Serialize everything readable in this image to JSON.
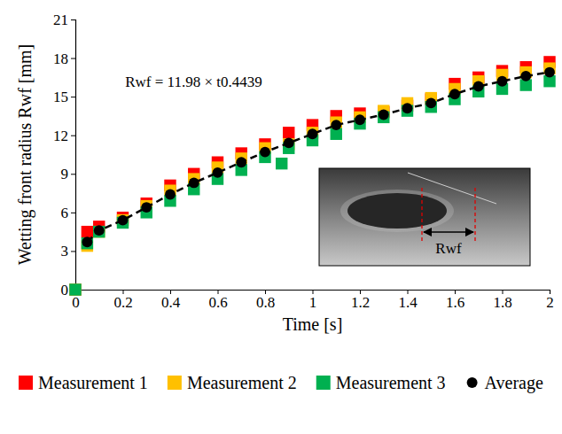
{
  "chart_data": {
    "type": "scatter",
    "x_label": "Time [s]",
    "y_label": "Wetting front radius Rwf [mm]",
    "annotation": "Rwf = 11.98 × t0.4439",
    "inset_label": "Rwf",
    "xlim": [
      0,
      2
    ],
    "xticks": [
      0,
      0.2,
      0.4,
      0.6,
      0.8,
      1,
      1.2,
      1.4,
      1.6,
      1.8,
      2
    ],
    "ylim": [
      0,
      21
    ],
    "yticks": [
      0,
      3,
      6,
      9,
      12,
      15,
      18,
      21
    ],
    "grid": false,
    "legend": "bottom",
    "series": [
      {
        "name": "Measurement 1",
        "color": "#ff0000",
        "marker": "square",
        "line_style": "none",
        "x": [
          0,
          0.05,
          0.1,
          0.2,
          0.3,
          0.4,
          0.5,
          0.6,
          0.7,
          0.8,
          0.9,
          1,
          1.1,
          1.2,
          1.3,
          1.4,
          1.5,
          1.6,
          1.7,
          1.8,
          1.9,
          2
        ],
        "values": [
          0,
          4.5,
          4.9,
          5.6,
          6.7,
          8.1,
          9.0,
          9.9,
          10.6,
          11.3,
          12.2,
          12.8,
          13.5,
          13.7,
          13.8,
          14.3,
          14.8,
          16.0,
          16.5,
          17.0,
          17.3,
          17.7
        ]
      },
      {
        "name": "Measurement 2",
        "color": "#ffc000",
        "marker": "square",
        "line_style": "none",
        "x": [
          0,
          0.05,
          0.1,
          0.2,
          0.3,
          0.4,
          0.5,
          0.6,
          0.7,
          0.8,
          0.9,
          1,
          1.1,
          1.2,
          1.3,
          1.4,
          1.5,
          1.6,
          1.7,
          1.8,
          1.9,
          2
        ],
        "values": [
          0,
          3.4,
          4.5,
          5.4,
          6.5,
          7.7,
          8.6,
          9.5,
          10.2,
          11.0,
          11.3,
          12.2,
          13.0,
          13.4,
          13.9,
          14.5,
          14.9,
          15.6,
          16.2,
          16.7,
          16.9,
          17.2
        ]
      },
      {
        "name": "Measurement 3",
        "color": "#00b050",
        "marker": "square",
        "line_style": "none",
        "x": [
          0,
          0.05,
          0.1,
          0.2,
          0.3,
          0.4,
          0.5,
          0.6,
          0.7,
          0.8,
          0.87,
          0.9,
          1,
          1.1,
          1.2,
          1.3,
          1.4,
          1.5,
          1.6,
          1.7,
          1.8,
          1.9,
          2
        ],
        "values": [
          0,
          3.6,
          4.5,
          5.2,
          6.0,
          6.9,
          7.8,
          8.6,
          9.3,
          10.3,
          9.8,
          11.0,
          11.6,
          12.1,
          12.9,
          13.4,
          13.9,
          14.2,
          14.8,
          15.4,
          15.6,
          15.9,
          16.2
        ]
      },
      {
        "name": "Average",
        "color": "#000000",
        "marker": "circle",
        "line_style": "dashed",
        "x": [
          0.05,
          0.1,
          0.2,
          0.3,
          0.4,
          0.5,
          0.6,
          0.7,
          0.8,
          0.9,
          1,
          1.1,
          1.2,
          1.3,
          1.4,
          1.5,
          1.6,
          1.7,
          1.8,
          1.9,
          2
        ],
        "values": [
          3.7,
          4.6,
          5.4,
          6.4,
          7.4,
          8.3,
          9.1,
          9.9,
          10.7,
          11.4,
          12.1,
          12.8,
          13.2,
          13.6,
          14.1,
          14.5,
          15.2,
          15.8,
          16.2,
          16.6,
          16.9
        ]
      }
    ]
  }
}
